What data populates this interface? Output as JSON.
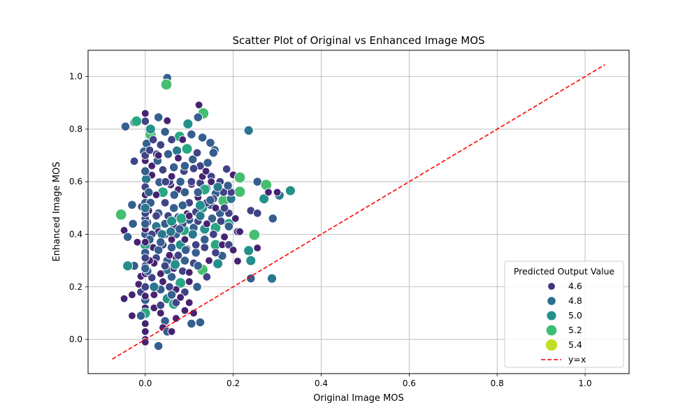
{
  "chart_data": {
    "type": "scatter",
    "title": "Scatter Plot of Original vs Enhanced Image MOS",
    "xlabel": "Original Image MOS",
    "ylabel": "Enhanced Image MOS",
    "xlim": [
      -0.13,
      1.1
    ],
    "ylim": [
      -0.13,
      1.1
    ],
    "x_ticks": [
      0.0,
      0.2,
      0.4,
      0.6,
      0.8,
      1.0
    ],
    "y_ticks": [
      0.0,
      0.2,
      0.4,
      0.6,
      0.8,
      1.0
    ],
    "x_tick_labels": [
      "0.0",
      "0.2",
      "0.4",
      "0.6",
      "0.8",
      "1.0"
    ],
    "y_tick_labels": [
      "0.0",
      "0.2",
      "0.4",
      "0.6",
      "0.8",
      "1.0"
    ],
    "grid": true,
    "legend": {
      "title": "Predicted Output Value",
      "placement": "bottom-right",
      "entries": [
        {
          "label": "4.6",
          "value": 4.6,
          "color": "#46327e"
        },
        {
          "label": "4.8",
          "value": 4.8,
          "color": "#2c6e8e"
        },
        {
          "label": "5.0",
          "value": 5.0,
          "color": "#21918c"
        },
        {
          "label": "5.2",
          "value": 5.2,
          "color": "#3dbc74"
        },
        {
          "label": "5.4",
          "value": 5.4,
          "color": "#bddf26"
        }
      ],
      "line_label": "y=x"
    },
    "reference_line": {
      "label": "y=x",
      "color": "#ff0000",
      "range": [
        -0.075,
        1.045
      ]
    },
    "colormap": [
      "#440154",
      "#46327e",
      "#365c8d",
      "#277f8e",
      "#1fa187",
      "#4ac16d",
      "#a0da39",
      "#fde725"
    ],
    "hue_range": [
      4.5,
      5.5
    ],
    "points": [
      [
        0.05,
        0.995,
        4.8
      ],
      [
        0.048,
        0.97,
        5.2
      ],
      [
        0.122,
        0.892,
        4.6
      ],
      [
        0.132,
        0.86,
        5.2
      ],
      [
        0.0,
        0.86,
        4.6
      ],
      [
        0.0,
        0.83,
        4.7
      ],
      [
        -0.045,
        0.81,
        4.8
      ],
      [
        -0.025,
        0.826,
        4.8
      ],
      [
        0.03,
        0.845,
        4.8
      ],
      [
        0.05,
        0.832,
        4.6
      ],
      [
        0.12,
        0.845,
        4.8
      ],
      [
        0.235,
        0.795,
        4.9
      ],
      [
        0.012,
        0.78,
        5.2
      ],
      [
        0.045,
        0.79,
        4.8
      ],
      [
        0.078,
        0.772,
        5.1
      ],
      [
        0.097,
        0.82,
        5.0
      ],
      [
        0.13,
        0.768,
        4.8
      ],
      [
        0.148,
        0.748,
        4.8
      ],
      [
        0.158,
        0.72,
        4.8
      ],
      [
        0.095,
        0.725,
        5.1
      ],
      [
        0.003,
        0.745,
        4.8
      ],
      [
        -0.003,
        0.715,
        4.8
      ],
      [
        0.026,
        0.705,
        4.7
      ],
      [
        0.052,
        0.705,
        4.8
      ],
      [
        0.072,
        0.718,
        4.9
      ],
      [
        0.108,
        0.685,
        4.8
      ],
      [
        0.125,
        0.66,
        4.7
      ],
      [
        0.142,
        0.672,
        4.8
      ],
      [
        0.185,
        0.648,
        4.7
      ],
      [
        0.2,
        0.626,
        4.6
      ],
      [
        0.215,
        0.616,
        5.2
      ],
      [
        -0.025,
        0.678,
        4.7
      ],
      [
        0.04,
        0.645,
        4.7
      ],
      [
        0.065,
        0.655,
        4.8
      ],
      [
        0.088,
        0.64,
        4.7
      ],
      [
        0.015,
        0.625,
        4.6
      ],
      [
        0.002,
        0.61,
        4.9
      ],
      [
        0.032,
        0.598,
        4.8
      ],
      [
        0.058,
        0.588,
        4.6
      ],
      [
        0.08,
        0.6,
        4.8
      ],
      [
        0.105,
        0.59,
        4.6
      ],
      [
        0.125,
        0.595,
        4.7
      ],
      [
        0.14,
        0.575,
        4.7
      ],
      [
        0.16,
        0.555,
        4.8
      ],
      [
        0.215,
        0.562,
        5.2
      ],
      [
        0.255,
        0.6,
        4.8
      ],
      [
        0.275,
        0.588,
        5.2
      ],
      [
        0.305,
        0.548,
        4.9
      ],
      [
        0.33,
        0.566,
        5.0
      ],
      [
        0.27,
        0.535,
        5.0
      ],
      [
        0.24,
        0.49,
        4.7
      ],
      [
        0.255,
        0.48,
        4.7
      ],
      [
        0.29,
        0.46,
        4.8
      ],
      [
        0.178,
        0.528,
        5.2
      ],
      [
        0.195,
        0.535,
        4.9
      ],
      [
        0.148,
        0.512,
        4.8
      ],
      [
        0.13,
        0.5,
        5.0
      ],
      [
        0.115,
        0.485,
        4.7
      ],
      [
        0.095,
        0.478,
        4.6
      ],
      [
        0.075,
        0.465,
        4.8
      ],
      [
        0.052,
        0.47,
        4.7
      ],
      [
        0.03,
        0.48,
        4.8
      ],
      [
        0.008,
        0.49,
        4.6
      ],
      [
        -0.008,
        0.505,
        4.7
      ],
      [
        -0.03,
        0.512,
        4.8
      ],
      [
        -0.055,
        0.475,
        5.2
      ],
      [
        -0.048,
        0.415,
        4.6
      ],
      [
        -0.04,
        0.39,
        4.8
      ],
      [
        -0.028,
        0.44,
        4.8
      ],
      [
        0.005,
        0.445,
        4.7
      ],
      [
        0.025,
        0.43,
        4.9
      ],
      [
        0.045,
        0.44,
        4.8
      ],
      [
        0.065,
        0.43,
        4.6
      ],
      [
        0.088,
        0.415,
        5.1
      ],
      [
        0.11,
        0.425,
        4.8
      ],
      [
        0.135,
        0.42,
        5.0
      ],
      [
        0.16,
        0.425,
        5.1
      ],
      [
        0.19,
        0.44,
        5.1
      ],
      [
        0.18,
        0.39,
        4.6
      ],
      [
        0.21,
        0.41,
        4.7
      ],
      [
        0.248,
        0.398,
        5.2
      ],
      [
        0.235,
        0.338,
        5.0
      ],
      [
        0.255,
        0.348,
        4.6
      ],
      [
        0.21,
        0.298,
        4.6
      ],
      [
        0.24,
        0.3,
        5.0
      ],
      [
        0.24,
        0.232,
        4.8
      ],
      [
        0.288,
        0.232,
        4.9
      ],
      [
        0.175,
        0.318,
        4.8
      ],
      [
        0.165,
        0.288,
        5.0
      ],
      [
        0.16,
        0.36,
        5.1
      ],
      [
        0.135,
        0.35,
        4.7
      ],
      [
        0.115,
        0.33,
        4.8
      ],
      [
        0.095,
        0.345,
        4.6
      ],
      [
        0.08,
        0.36,
        5.0
      ],
      [
        0.06,
        0.35,
        4.8
      ],
      [
        0.04,
        0.36,
        4.7
      ],
      [
        0.018,
        0.35,
        4.6
      ],
      [
        0.0,
        0.36,
        5.1
      ],
      [
        -0.018,
        0.37,
        4.6
      ],
      [
        0.0,
        0.33,
        4.8
      ],
      [
        0.025,
        0.31,
        4.7
      ],
      [
        0.05,
        0.3,
        4.8
      ],
      [
        0.07,
        0.31,
        4.6
      ],
      [
        0.09,
        0.3,
        4.8
      ],
      [
        0.11,
        0.29,
        4.7
      ],
      [
        0.13,
        0.265,
        5.2
      ],
      [
        0.14,
        0.238,
        4.7
      ],
      [
        0.118,
        0.2,
        4.8
      ],
      [
        0.1,
        0.22,
        4.6
      ],
      [
        0.08,
        0.215,
        5.1
      ],
      [
        0.06,
        0.238,
        4.8
      ],
      [
        0.05,
        0.265,
        4.9
      ],
      [
        0.035,
        0.25,
        4.6
      ],
      [
        0.015,
        0.235,
        4.7
      ],
      [
        -0.01,
        0.24,
        4.6
      ],
      [
        -0.025,
        0.28,
        4.8
      ],
      [
        -0.04,
        0.28,
        5.0
      ],
      [
        0.0,
        0.28,
        4.7
      ],
      [
        -0.015,
        0.21,
        4.6
      ],
      [
        -0.03,
        0.17,
        4.6
      ],
      [
        -0.048,
        0.155,
        4.6
      ],
      [
        -0.01,
        0.18,
        4.7
      ],
      [
        0.0,
        0.15,
        4.8
      ],
      [
        0.0,
        0.12,
        4.6
      ],
      [
        0.0,
        0.1,
        5.1
      ],
      [
        -0.03,
        0.09,
        4.6
      ],
      [
        -0.01,
        0.09,
        4.8
      ],
      [
        0.02,
        0.12,
        4.6
      ],
      [
        0.035,
        0.13,
        4.7
      ],
      [
        0.05,
        0.155,
        5.0
      ],
      [
        0.065,
        0.135,
        5.1
      ],
      [
        0.07,
        0.14,
        4.7
      ],
      [
        0.1,
        0.14,
        4.6
      ],
      [
        0.11,
        0.1,
        4.6
      ],
      [
        0.105,
        0.06,
        4.8
      ],
      [
        0.125,
        0.065,
        4.8
      ],
      [
        0.045,
        0.07,
        4.8
      ],
      [
        0.04,
        0.045,
        4.6
      ],
      [
        0.05,
        0.03,
        4.8
      ],
      [
        0.06,
        0.03,
        4.6
      ],
      [
        0.03,
        -0.025,
        4.8
      ],
      [
        0.0,
        0.0,
        4.6
      ],
      [
        0.0,
        -0.01,
        4.6
      ],
      [
        0.0,
        0.03,
        4.6
      ],
      [
        0.0,
        0.06,
        4.6
      ],
      [
        0.0,
        0.2,
        4.7
      ],
      [
        0.0,
        0.25,
        4.6
      ],
      [
        0.0,
        0.4,
        4.8
      ],
      [
        0.0,
        0.42,
        4.6
      ],
      [
        0.0,
        0.46,
        4.7
      ],
      [
        0.0,
        0.52,
        4.8
      ],
      [
        0.0,
        0.55,
        4.6
      ],
      [
        0.0,
        0.58,
        4.7
      ],
      [
        0.0,
        0.64,
        4.8
      ],
      [
        0.0,
        0.68,
        4.6
      ],
      [
        0.0,
        0.7,
        4.7
      ],
      [
        0.015,
        0.66,
        4.6
      ],
      [
        0.028,
        0.68,
        4.8
      ],
      [
        0.04,
        0.56,
        5.1
      ],
      [
        0.055,
        0.6,
        4.7
      ],
      [
        0.075,
        0.57,
        4.6
      ],
      [
        0.09,
        0.56,
        4.8
      ],
      [
        0.1,
        0.52,
        4.7
      ],
      [
        0.12,
        0.54,
        4.6
      ],
      [
        0.135,
        0.57,
        5.1
      ],
      [
        0.155,
        0.535,
        4.7
      ],
      [
        0.17,
        0.48,
        4.8
      ],
      [
        0.19,
        0.48,
        4.7
      ],
      [
        0.205,
        0.46,
        4.6
      ],
      [
        0.215,
        0.41,
        4.6
      ],
      [
        0.172,
        0.45,
        4.7
      ],
      [
        0.152,
        0.46,
        4.8
      ],
      [
        0.14,
        0.44,
        4.6
      ],
      [
        0.12,
        0.45,
        4.7
      ],
      [
        0.1,
        0.455,
        4.8
      ],
      [
        0.085,
        0.44,
        4.7
      ],
      [
        0.07,
        0.4,
        4.8
      ],
      [
        0.06,
        0.38,
        4.6
      ],
      [
        0.045,
        0.4,
        4.8
      ],
      [
        0.03,
        0.41,
        4.6
      ],
      [
        0.015,
        0.4,
        4.7
      ],
      [
        0.01,
        0.38,
        4.8
      ],
      [
        0.02,
        0.29,
        4.6
      ],
      [
        0.045,
        0.28,
        4.7
      ],
      [
        0.065,
        0.27,
        4.6
      ],
      [
        0.085,
        0.26,
        4.7
      ],
      [
        0.1,
        0.255,
        4.6
      ],
      [
        0.12,
        0.28,
        4.8
      ],
      [
        0.145,
        0.3,
        4.6
      ],
      [
        0.16,
        0.33,
        4.7
      ],
      [
        0.175,
        0.36,
        4.6
      ],
      [
        0.19,
        0.36,
        4.7
      ],
      [
        0.2,
        0.34,
        4.6
      ],
      [
        0.07,
        0.19,
        4.6
      ],
      [
        0.09,
        0.18,
        4.7
      ],
      [
        0.055,
        0.2,
        4.7
      ],
      [
        0.035,
        0.19,
        4.8
      ],
      [
        0.02,
        0.17,
        4.6
      ],
      [
        0.0,
        0.165,
        4.6
      ],
      [
        0.005,
        0.26,
        4.8
      ],
      [
        0.012,
        0.52,
        4.8
      ],
      [
        0.025,
        0.55,
        4.6
      ],
      [
        0.045,
        0.52,
        4.7
      ],
      [
        0.065,
        0.5,
        4.6
      ],
      [
        0.085,
        0.51,
        4.8
      ],
      [
        0.105,
        0.6,
        4.7
      ],
      [
        0.06,
        0.62,
        4.6
      ],
      [
        0.075,
        0.69,
        4.6
      ],
      [
        0.09,
        0.66,
        4.8
      ],
      [
        0.035,
        0.74,
        4.7
      ],
      [
        0.06,
        0.76,
        4.7
      ],
      [
        0.085,
        0.76,
        4.6
      ],
      [
        0.105,
        0.78,
        4.8
      ],
      [
        0.03,
        0.7,
        4.6
      ],
      [
        0.01,
        0.72,
        4.7
      ],
      [
        0.018,
        0.76,
        4.7
      ],
      [
        0.11,
        0.65,
        4.7
      ],
      [
        0.13,
        0.62,
        4.6
      ],
      [
        0.15,
        0.62,
        4.7
      ],
      [
        0.17,
        0.6,
        4.7
      ],
      [
        0.15,
        0.6,
        4.6
      ],
      [
        0.12,
        0.56,
        4.8
      ],
      [
        0.14,
        0.52,
        4.7
      ],
      [
        0.16,
        0.5,
        4.6
      ],
      [
        0.18,
        0.5,
        4.7
      ],
      [
        0.19,
        0.43,
        4.8
      ],
      [
        0.155,
        0.4,
        4.7
      ],
      [
        0.135,
        0.38,
        4.8
      ],
      [
        0.115,
        0.36,
        4.7
      ],
      [
        0.09,
        0.38,
        4.6
      ],
      [
        0.075,
        0.32,
        4.7
      ],
      [
        0.055,
        0.32,
        4.6
      ],
      [
        0.03,
        0.34,
        4.8
      ],
      [
        0.01,
        0.3,
        4.6
      ],
      [
        0.02,
        0.2,
        4.9
      ],
      [
        0.04,
        0.22,
        4.6
      ],
      [
        0.06,
        0.17,
        4.8
      ],
      [
        0.08,
        0.16,
        4.6
      ],
      [
        0.035,
        0.1,
        4.6
      ],
      [
        0.07,
        0.08,
        4.6
      ],
      [
        0.09,
        0.11,
        4.6
      ],
      [
        0.28,
        0.56,
        4.6
      ],
      [
        0.3,
        0.56,
        4.6
      ],
      [
        0.195,
        0.56,
        4.7
      ],
      [
        0.178,
        0.56,
        4.7
      ],
      [
        0.108,
        0.4,
        4.9
      ],
      [
        0.082,
        0.46,
        5.1
      ],
      [
        0.066,
        0.55,
        4.8
      ],
      [
        0.046,
        0.6,
        4.7
      ],
      [
        0.008,
        0.56,
        4.8
      ],
      [
        0.0,
        0.27,
        4.8
      ],
      [
        0.0,
        0.31,
        4.7
      ],
      [
        0.0,
        0.37,
        4.6
      ],
      [
        0.0,
        0.44,
        4.8
      ],
      [
        0.0,
        0.48,
        4.7
      ],
      [
        0.0,
        0.5,
        4.9
      ],
      [
        0.06,
        0.45,
        5.0
      ],
      [
        0.038,
        0.4,
        4.9
      ],
      [
        0.025,
        0.47,
        4.7
      ],
      [
        0.092,
        0.34,
        4.8
      ],
      [
        0.148,
        0.53,
        4.8
      ],
      [
        0.165,
        0.58,
        4.9
      ],
      [
        0.125,
        0.51,
        5.0
      ],
      [
        0.068,
        0.285,
        5.0
      ],
      [
        0.188,
        0.585,
        4.8
      ],
      [
        0.155,
        0.71,
        4.8
      ],
      [
        0.138,
        0.64,
        4.6
      ],
      [
        0.118,
        0.71,
        4.7
      ],
      [
        0.012,
        0.8,
        5.0
      ],
      [
        -0.02,
        0.83,
        5.1
      ],
      [
        0.065,
        0.5,
        4.8
      ],
      [
        0.078,
        0.42,
        4.8
      ],
      [
        0.058,
        0.41,
        4.9
      ],
      [
        0.035,
        0.37,
        4.8
      ],
      [
        0.1,
        0.47,
        4.6
      ],
      [
        0.125,
        0.47,
        4.9
      ]
    ]
  }
}
